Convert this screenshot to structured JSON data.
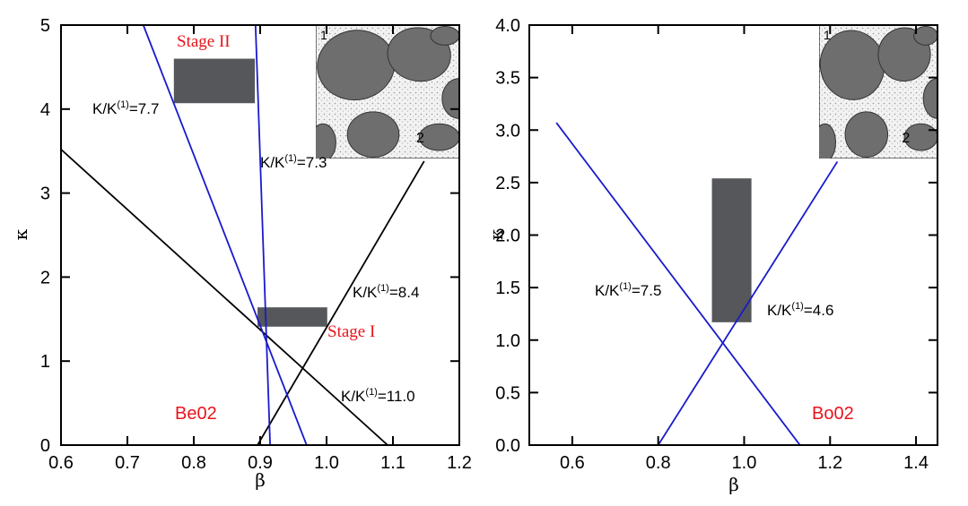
{
  "chart_data": [
    {
      "type": "line",
      "xlabel": "β",
      "ylabel": "κ",
      "xlim": [
        0.6,
        1.2
      ],
      "ylim": [
        0,
        5
      ],
      "xticks": [
        0.6,
        0.7,
        0.8,
        0.9,
        {
          "value": 1,
          "label": "1.0"
        },
        1.1,
        1.2
      ],
      "yticks": [
        0,
        1,
        2,
        3,
        4,
        5
      ],
      "series": [
        {
          "color": "#000000",
          "x": [
            0.6,
            1.092
          ],
          "values": [
            3.52,
            0
          ]
        },
        {
          "color": "#000000",
          "x": [
            0.896,
            1.147
          ],
          "values": [
            0,
            3.38
          ]
        },
        {
          "color": "#1a1acc",
          "x": [
            0.724,
            0.97
          ],
          "values": [
            5,
            0
          ]
        },
        {
          "color": "#1a1acc",
          "x": [
            0.893,
            0.915
          ],
          "values": [
            5,
            0
          ]
        }
      ],
      "regions": [
        {
          "color": "#55575a",
          "x": [
            0.77,
            0.892
          ],
          "y": [
            4.07,
            4.6
          ]
        },
        {
          "color": "#55575a",
          "x": [
            0.896,
            1.001
          ],
          "y": [
            1.41,
            1.64
          ]
        }
      ],
      "annotations": [
        {
          "text": "K/K",
          "sup": "(1)",
          "rest": "=7.7"
        },
        {
          "text": "K/K",
          "sup": "(1)",
          "rest": "=7.3"
        },
        {
          "text": "K/K",
          "sup": "(1)",
          "rest": "=8.4"
        },
        {
          "text": "K/K",
          "sup": "(1)",
          "rest": "=11.0"
        },
        {
          "text": "Stage II",
          "color": "#e8141c"
        },
        {
          "text": "Stage I",
          "color": "#e8141c"
        },
        {
          "text": "Be02",
          "color": "#e8141c"
        }
      ],
      "inset_labels": [
        "1",
        "2"
      ]
    },
    {
      "type": "line",
      "xlabel": "β",
      "ylabel": "κ",
      "xlim": [
        0.5,
        1.45
      ],
      "ylim": [
        0,
        4
      ],
      "xticks": [
        0.6,
        0.8,
        {
          "value": 1,
          "label": "1.0"
        },
        1.2,
        1.4
      ],
      "yticks": [
        {
          "value": 0,
          "label": "0.0"
        },
        0.5,
        {
          "value": 1,
          "label": "1.0"
        },
        1.5,
        {
          "value": 2,
          "label": "2.0"
        },
        2.5,
        {
          "value": 3,
          "label": "3.0"
        },
        3.5,
        {
          "value": 4,
          "label": "4.0"
        }
      ],
      "series": [
        {
          "color": "#1a1acc",
          "x": [
            0.563,
            1.13
          ],
          "values": [
            3.07,
            0
          ]
        },
        {
          "color": "#1a1acc",
          "x": [
            0.8,
            1.217
          ],
          "values": [
            0,
            2.7
          ]
        }
      ],
      "regions": [
        {
          "color": "#55575a",
          "x": [
            0.925,
            1.017
          ],
          "y": [
            1.17,
            2.54
          ]
        }
      ],
      "annotations": [
        {
          "text": "K/K",
          "sup": "(1)",
          "rest": "=7.5"
        },
        {
          "text": "K/K",
          "sup": "(1)",
          "rest": "=4.6"
        },
        {
          "text": "Bo02",
          "color": "#e8141c"
        }
      ],
      "inset_labels": [
        "1",
        "2"
      ]
    }
  ]
}
